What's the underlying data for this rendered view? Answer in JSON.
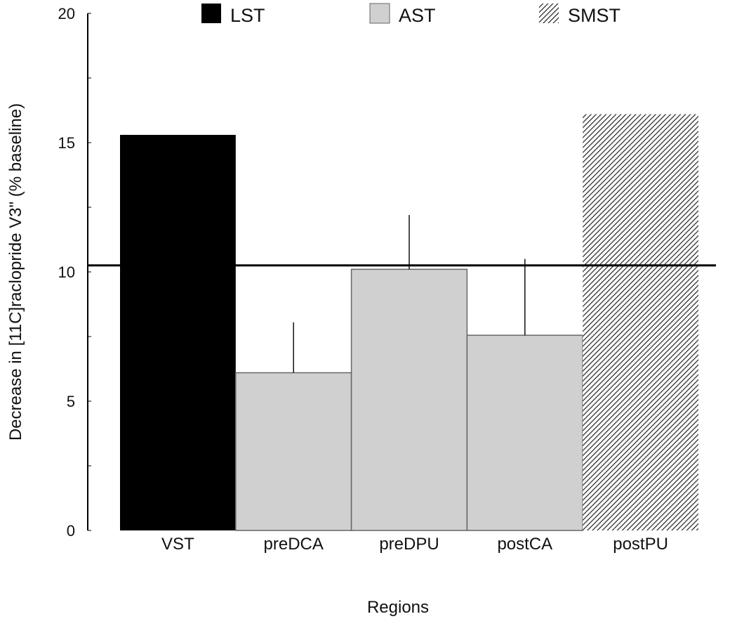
{
  "chart_data": {
    "type": "bar",
    "title": "",
    "xlabel": "Regions",
    "ylabel": "Decrease in [11C]raclopride V3\" (% baseline)",
    "ylim": [
      0,
      20
    ],
    "yticks": [
      0,
      5,
      10,
      15,
      20
    ],
    "categories": [
      "VST",
      "preDCA",
      "preDPU",
      "postCA",
      "postPU"
    ],
    "values": [
      15.3,
      6.1,
      10.1,
      7.55,
      16.1
    ],
    "error_upper": [
      null,
      8.05,
      12.2,
      10.5,
      null
    ],
    "groups": [
      "LST",
      "AST",
      "AST",
      "AST",
      "SMST"
    ],
    "reference_line": 10.25,
    "legend": {
      "placement": "top",
      "entries": [
        {
          "label": "LST",
          "color": "#000000",
          "pattern": "solid"
        },
        {
          "label": "AST",
          "color": "#d0d0d0",
          "pattern": "solid"
        },
        {
          "label": "SMST",
          "color": "#555555",
          "pattern": "hatch"
        }
      ]
    }
  }
}
